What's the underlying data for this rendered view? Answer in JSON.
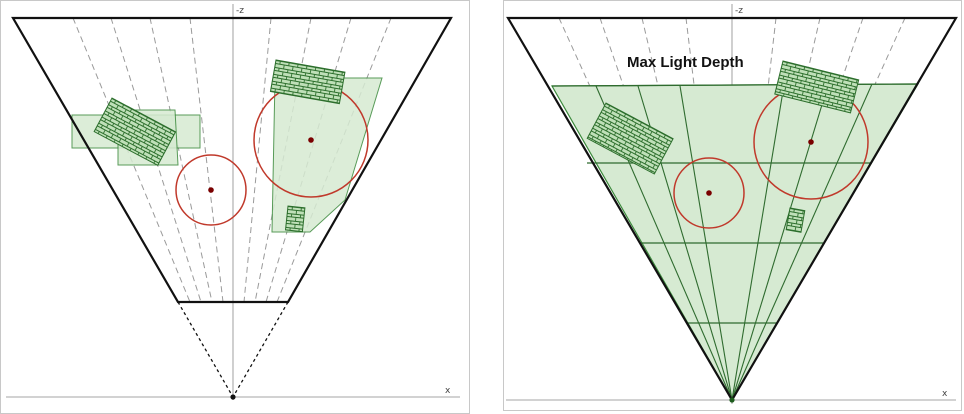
{
  "diagrams": [
    {
      "axis_labels": {
        "z": "-z",
        "x": "x"
      }
    },
    {
      "heading": "Max Light Depth",
      "axis_labels": {
        "z": "-z",
        "x": "x"
      }
    }
  ],
  "colors": {
    "frustum": "#111111",
    "split_lines_left": "#9a9a9a",
    "split_lines_right": "#2f6b2f",
    "shadow_fill": "#d6ead2",
    "shadow_stroke": "#3b8a3b",
    "object_fill": "#bfe0b8",
    "object_hatch": "#2c6e2c",
    "light_circle": "#c0392b",
    "light_center": "#7a0000",
    "axis": "#666666"
  }
}
